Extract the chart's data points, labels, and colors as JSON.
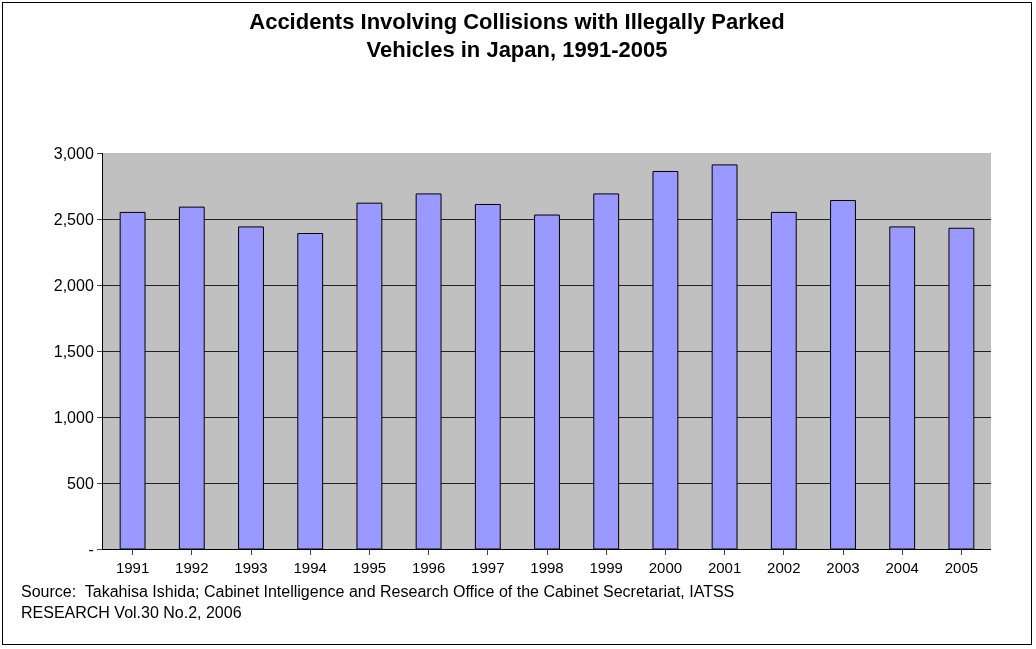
{
  "chart_data": {
    "type": "bar",
    "title": "Accidents Involving Collisions with Illegally Parked Vehicles in Japan, 1991-2005",
    "categories": [
      "1991",
      "1992",
      "1993",
      "1994",
      "1995",
      "1996",
      "1997",
      "1998",
      "1999",
      "2000",
      "2001",
      "2002",
      "2003",
      "2004",
      "2005"
    ],
    "values": [
      2550,
      2590,
      2440,
      2390,
      2620,
      2690,
      2610,
      2530,
      2690,
      2860,
      2910,
      2550,
      2640,
      2440,
      2430
    ],
    "color": "#9999ff",
    "ylim": [
      0,
      3000
    ],
    "yticks": [
      {
        "value": 0,
        "label": "-"
      },
      {
        "value": 500,
        "label": "500"
      },
      {
        "value": 1000,
        "label": "1,000"
      },
      {
        "value": 1500,
        "label": "1,500"
      },
      {
        "value": 2000,
        "label": "2,000"
      },
      {
        "value": 2500,
        "label": "2,500"
      },
      {
        "value": 3000,
        "label": "3,000"
      }
    ],
    "grid": "y",
    "annotations": [
      "Source:  Takahisa Ishida; Cabinet Intelligence and Research Office of the Cabinet Secretariat, IATSS RESEARCH Vol.30 No.2, 2006"
    ]
  }
}
